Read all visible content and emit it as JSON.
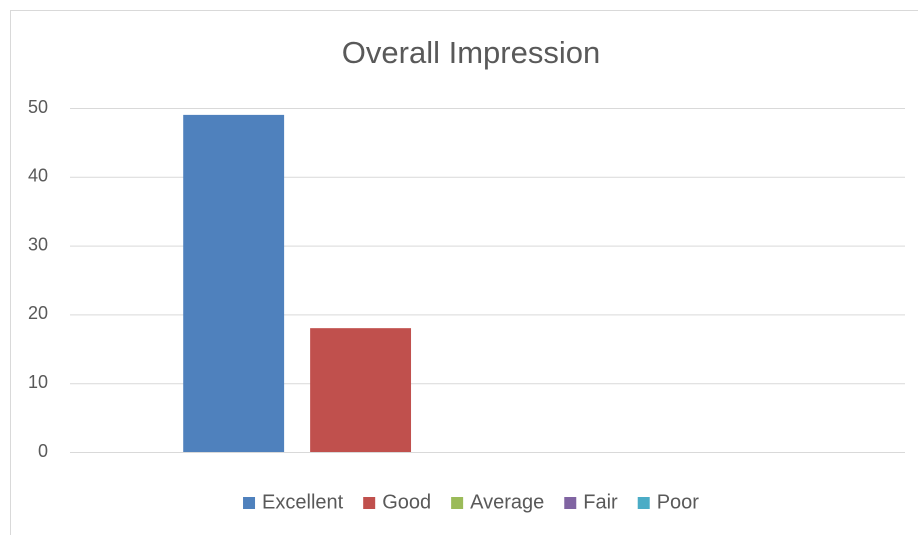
{
  "chart_data": {
    "type": "bar",
    "title": "Overall Impression",
    "categories": [
      null
    ],
    "series": [
      {
        "name": "Excellent",
        "color": "#4f81bd",
        "values": [
          49
        ]
      },
      {
        "name": "Good",
        "color": "#c0504d",
        "values": [
          18
        ]
      },
      {
        "name": "Average",
        "color": "#9bbb59",
        "values": [
          0
        ]
      },
      {
        "name": "Fair",
        "color": "#8064a2",
        "values": [
          0
        ]
      },
      {
        "name": "Poor",
        "color": "#4bacc6",
        "values": [
          0
        ]
      }
    ],
    "ylim": [
      0,
      50
    ],
    "yticks": [
      0,
      10,
      20,
      30,
      40,
      50
    ],
    "grid": true,
    "legend": "bottom"
  }
}
